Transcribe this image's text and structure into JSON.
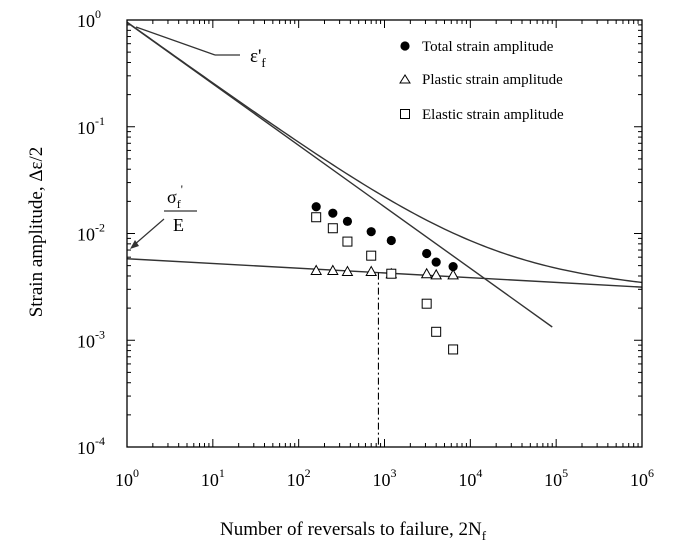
{
  "chart_data": {
    "type": "scatter",
    "xlabel": "Number of reversals to failure, 2N",
    "xlabel_sub": "f",
    "ylabel": "Strain amplitude,  Δε/2",
    "x_scale": "log",
    "y_scale": "log",
    "xlim": [
      1,
      1000000
    ],
    "ylim": [
      0.0001,
      1
    ],
    "x_ticks": [
      {
        "base": "10",
        "exp": "0",
        "value": 1
      },
      {
        "base": "10",
        "exp": "1",
        "value": 10
      },
      {
        "base": "10",
        "exp": "2",
        "value": 100
      },
      {
        "base": "10",
        "exp": "3",
        "value": 1000
      },
      {
        "base": "10",
        "exp": "4",
        "value": 10000
      },
      {
        "base": "10",
        "exp": "5",
        "value": 100000
      },
      {
        "base": "10",
        "exp": "6",
        "value": 1000000
      }
    ],
    "y_ticks": [
      {
        "base": "10",
        "exp": "0",
        "value": 1
      },
      {
        "base": "10",
        "exp": "-1",
        "value": 0.1
      },
      {
        "base": "10",
        "exp": "-2",
        "value": 0.01
      },
      {
        "base": "10",
        "exp": "-3",
        "value": 0.001
      },
      {
        "base": "10",
        "exp": "-4",
        "value": 0.0001
      }
    ],
    "legend_position": "top-right",
    "series": [
      {
        "name": "Total strain amplitude",
        "marker": "filled-circle",
        "points": [
          [
            160,
            0.0178
          ],
          [
            250,
            0.0155
          ],
          [
            370,
            0.013
          ],
          [
            700,
            0.0104
          ],
          [
            1200,
            0.0086
          ],
          [
            3100,
            0.0065
          ],
          [
            4000,
            0.0054
          ],
          [
            6300,
            0.0049
          ]
        ]
      },
      {
        "name": "Plastic strain amplitude",
        "marker": "open-triangle",
        "points": [
          [
            160,
            0.0045
          ],
          [
            250,
            0.0045
          ],
          [
            370,
            0.0044
          ],
          [
            700,
            0.0044
          ],
          [
            1200,
            0.0042
          ],
          [
            3100,
            0.0042
          ],
          [
            4000,
            0.0041
          ],
          [
            6300,
            0.0041
          ]
        ]
      },
      {
        "name": "Elastic strain amplitude",
        "marker": "open-square",
        "points": [
          [
            160,
            0.0142
          ],
          [
            250,
            0.0112
          ],
          [
            370,
            0.0084
          ],
          [
            700,
            0.0062
          ],
          [
            1200,
            0.0042
          ],
          [
            3100,
            0.0022
          ],
          [
            4000,
            0.0012
          ],
          [
            6300,
            0.00082
          ]
        ]
      }
    ],
    "fit_lines": {
      "elastic": {
        "intercept": 0.95,
        "slope": -0.576
      },
      "plastic": {
        "intercept": 0.0058,
        "slope": -0.0443
      },
      "x_end": 90000
    },
    "transition_life": 850,
    "annotations": {
      "fatigue_ductility": {
        "symbol": "ε'",
        "subscript": "f"
      },
      "fatigue_strength": {
        "numerator": "σ",
        "numerator_sub": "f",
        "numerator_sup": "'",
        "denominator": "E"
      }
    }
  },
  "colors": {
    "line": "#333333",
    "marker": "#000000"
  }
}
